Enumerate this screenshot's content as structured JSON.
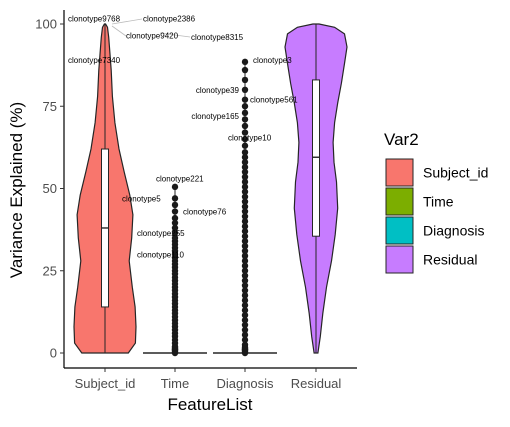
{
  "chart_data": {
    "type": "violin",
    "title": "",
    "xlabel": "FeatureList",
    "ylabel": "Variance Explained (%)",
    "ylim": [
      0,
      100
    ],
    "yticks": [
      0,
      25,
      50,
      75,
      100
    ],
    "grid": false,
    "legend": {
      "title": "Var2",
      "placement": "right",
      "entries": [
        {
          "label": "Subject_id",
          "color": "#F8766D"
        },
        {
          "label": "Time",
          "color": "#7CAE00"
        },
        {
          "label": "Diagnosis",
          "color": "#00BFC4"
        },
        {
          "label": "Residual",
          "color": "#C77CFF"
        }
      ]
    },
    "categories": [
      "Subject_id",
      "Time",
      "Diagnosis",
      "Residual"
    ],
    "series": [
      {
        "name": "Subject_id",
        "color": "#F8766D",
        "box": {
          "whisker_low": 0,
          "q1": 14,
          "median": 38,
          "q3": 62,
          "whisker_high": 100
        },
        "outliers": []
      },
      {
        "name": "Time",
        "color": "#7CAE00",
        "box": {
          "whisker_low": 0,
          "q1": 0,
          "median": 0,
          "q3": 0,
          "whisker_high": 0
        },
        "outliers": [
          50.5,
          47,
          45,
          43,
          41,
          39.5,
          38,
          36.5,
          35,
          34,
          33,
          32,
          31,
          30,
          29,
          28,
          27,
          26,
          25,
          24,
          23,
          22,
          21,
          20,
          19,
          18,
          17,
          16,
          15,
          14,
          13,
          12,
          11,
          10,
          9,
          8,
          7,
          6,
          5,
          4,
          3,
          2,
          1
        ]
      },
      {
        "name": "Diagnosis",
        "color": "#00BFC4",
        "box": {
          "whisker_low": 0,
          "q1": 0,
          "median": 0,
          "q3": 0,
          "whisker_high": 0
        },
        "outliers": [
          88.5,
          86,
          83,
          80,
          77,
          75,
          73,
          71,
          69,
          67,
          65,
          63,
          61,
          59.5,
          58,
          56.5,
          55,
          53.5,
          52,
          50.5,
          49,
          47.5,
          46,
          44.5,
          43,
          41.5,
          40,
          38.5,
          37,
          35.5,
          34,
          32.5,
          31,
          29.5,
          28,
          26.5,
          25,
          23.5,
          22,
          20.5,
          19,
          17.5,
          16,
          14.5,
          13,
          11.5,
          10,
          8.5,
          7,
          5.5,
          4,
          2.5,
          1
        ]
      },
      {
        "name": "Residual",
        "color": "#C77CFF",
        "box": {
          "whisker_low": 0,
          "q1": 35.5,
          "median": 59.5,
          "q3": 83,
          "whisker_high": 100
        },
        "outliers": []
      }
    ],
    "annotations": [
      {
        "text": "clonotype9768",
        "category": "Subject_id",
        "y": 100.5
      },
      {
        "text": "clonotype2386",
        "category": "Subject_id",
        "y": 100.5
      },
      {
        "text": "clonotype9420",
        "category": "Subject_id",
        "y": 96.5
      },
      {
        "text": "clonotype8315",
        "category": "Subject_id",
        "y": 96
      },
      {
        "text": "clonotype7340",
        "category": "Subject_id",
        "y": 89
      },
      {
        "text": "clonotype5",
        "category": "Subject_id",
        "y": 47
      },
      {
        "text": "clonotype221",
        "category": "Time",
        "y": 53
      },
      {
        "text": "clonotype76",
        "category": "Time",
        "y": 43
      },
      {
        "text": "clonotype255",
        "category": "Time",
        "y": 36.5
      },
      {
        "text": "clonotype110",
        "category": "Time",
        "y": 30
      },
      {
        "text": "clonotype3",
        "category": "Diagnosis",
        "y": 89
      },
      {
        "text": "clonotype39",
        "category": "Diagnosis",
        "y": 80
      },
      {
        "text": "clonotype561",
        "category": "Diagnosis",
        "y": 77
      },
      {
        "text": "clonotype165",
        "category": "Diagnosis",
        "y": 72
      },
      {
        "text": "clonotype10",
        "category": "Diagnosis",
        "y": 65.5
      }
    ]
  }
}
